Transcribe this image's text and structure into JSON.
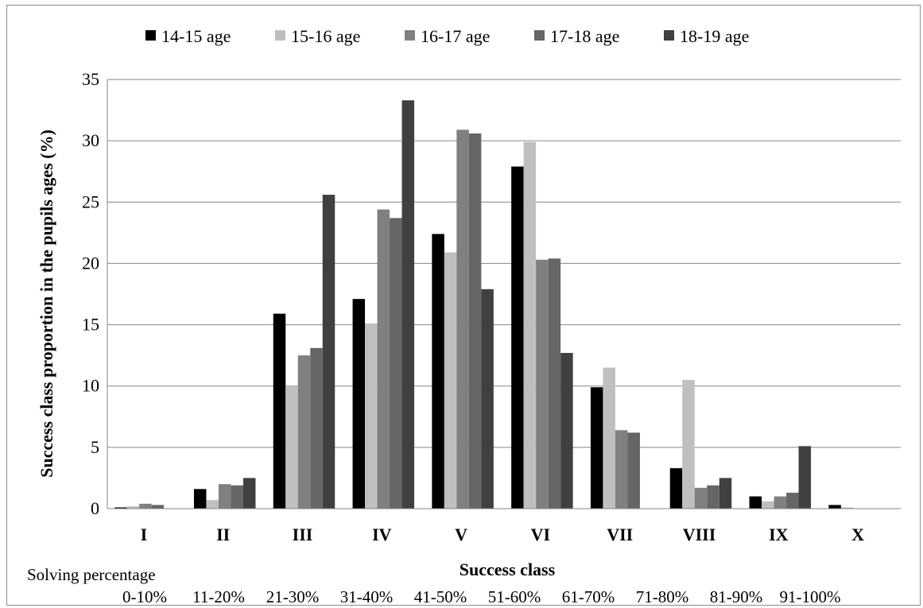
{
  "chart_data": {
    "type": "bar",
    "title": "",
    "xlabel": "Success class",
    "ylabel": "Success class proportion in the pupils ages (%)",
    "ylim": [
      0,
      35
    ],
    "yticks": [
      0,
      5,
      10,
      15,
      20,
      25,
      30,
      35
    ],
    "grid": true,
    "legend_position": "top",
    "categories": [
      "I",
      "II",
      "III",
      "IV",
      "V",
      "VI",
      "VII",
      "VIII",
      "IX",
      "X"
    ],
    "solving_percentage_label": "Solving percentage",
    "solving_percentages": [
      "0-10%",
      "11-20%",
      "21-30%",
      "31-40%",
      "41-50%",
      "51-60%",
      "61-70%",
      "71-80%",
      "81-90%",
      "91-100%"
    ],
    "series": [
      {
        "name": "14-15 age",
        "color": "#000000",
        "values": [
          0.1,
          1.6,
          15.9,
          17.1,
          22.4,
          27.9,
          9.9,
          3.3,
          1.0,
          0.3
        ]
      },
      {
        "name": "15-16 age",
        "color": "#bfbfbf",
        "values": [
          0.2,
          0.7,
          10.0,
          15.1,
          20.9,
          29.9,
          11.5,
          10.5,
          0.6,
          0.1
        ]
      },
      {
        "name": "16-17 age",
        "color": "#808080",
        "values": [
          0.4,
          2.0,
          12.5,
          24.4,
          30.9,
          20.3,
          6.4,
          1.7,
          1.0,
          0.0
        ]
      },
      {
        "name": "17-18 age",
        "color": "#666666",
        "values": [
          0.3,
          1.9,
          13.1,
          23.7,
          30.6,
          20.4,
          6.2,
          1.9,
          1.3,
          0.0
        ]
      },
      {
        "name": "18-19 age",
        "color": "#404040",
        "values": [
          0.0,
          2.5,
          25.6,
          33.3,
          17.9,
          12.7,
          0.0,
          2.5,
          5.1,
          0.0
        ]
      }
    ]
  }
}
